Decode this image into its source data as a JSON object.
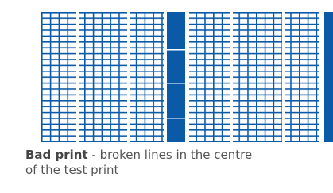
{
  "caption": {
    "heading": "Bad print",
    "line1": "- broken lines in the centre",
    "line2": "of the test print"
  }
}
